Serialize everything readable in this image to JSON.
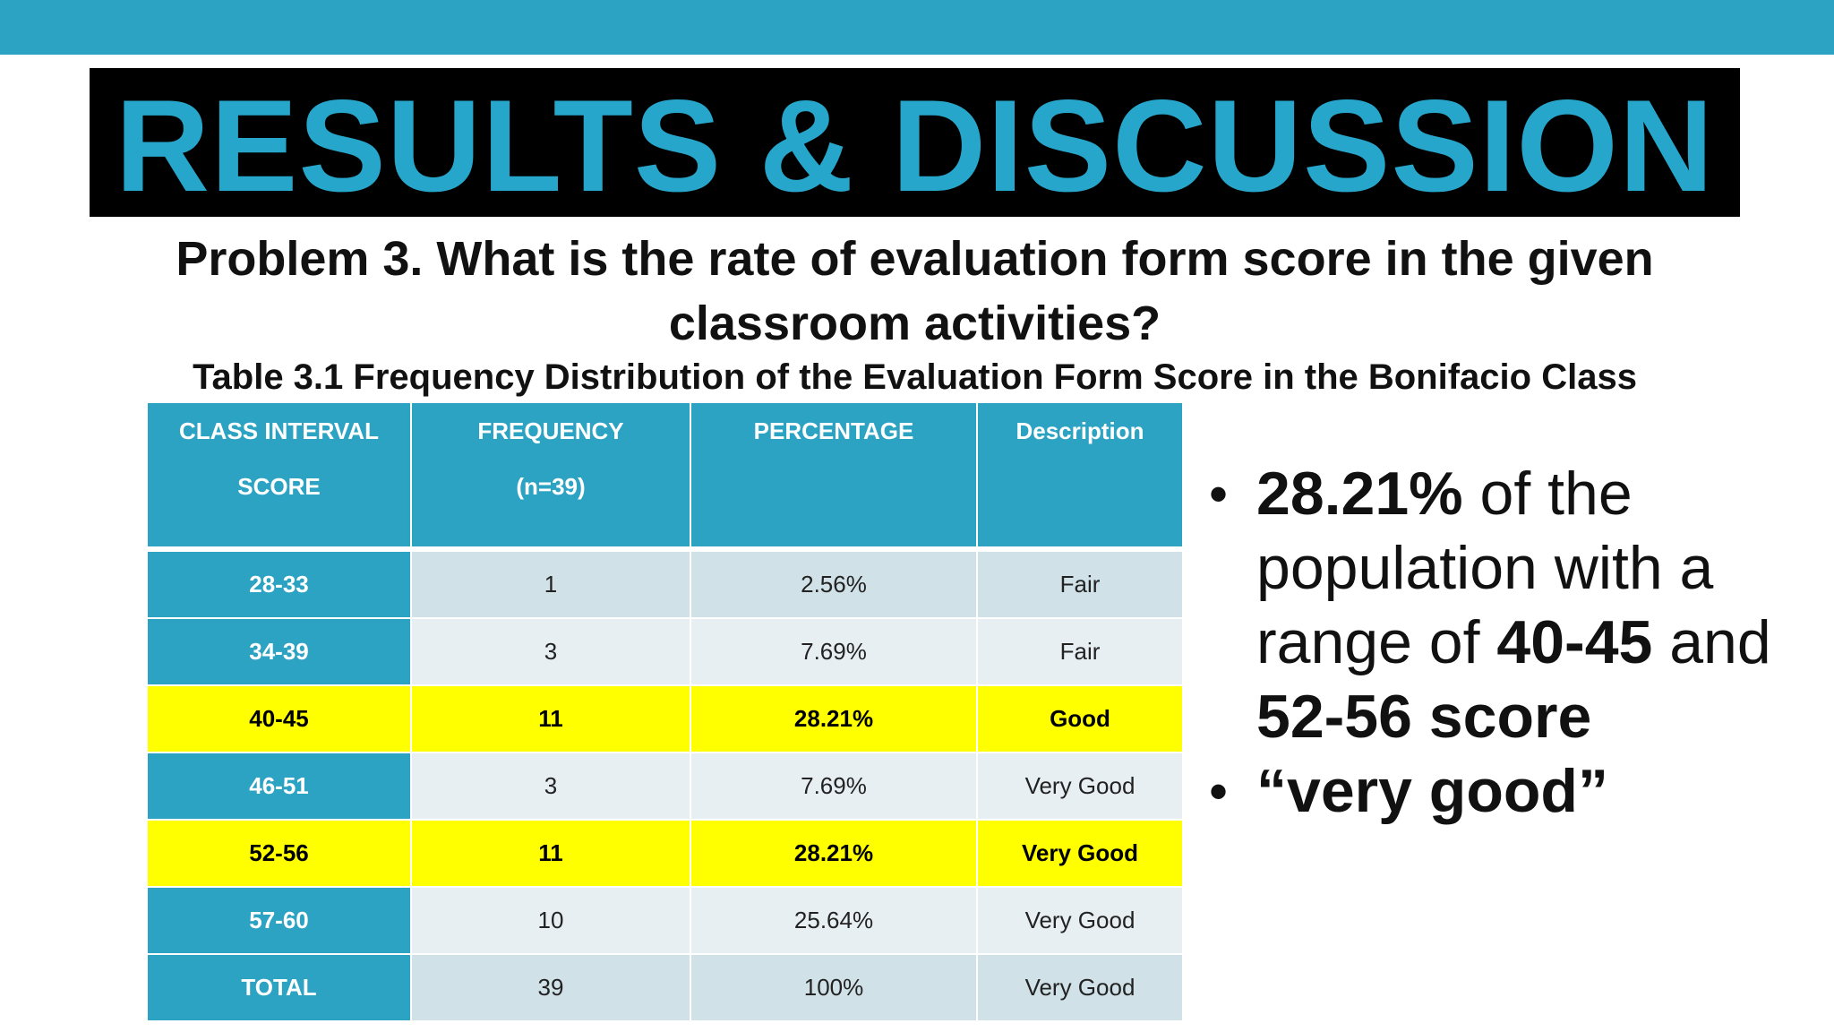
{
  "slide": {
    "title": "RESULTS & DISCUSSION",
    "problem": "Problem 3. What is the rate of evaluation form score in the given classroom activities?",
    "table_caption": "Table 3.1 Frequency Distribution of the Evaluation Form Score in the Bonifacio Class",
    "colors": {
      "accent": "#2da3c3",
      "title_text": "#27a6cb",
      "title_band": "#000000",
      "highlight": "#ffff00"
    }
  },
  "table": {
    "headers": [
      [
        "CLASS INTERVAL",
        "SCORE"
      ],
      [
        "FREQUENCY",
        "(n=39)"
      ],
      [
        "PERCENTAGE",
        ""
      ],
      [
        "Description",
        ""
      ]
    ],
    "rows": [
      {
        "interval": "28-33",
        "frequency": "1",
        "percentage": "2.56%",
        "description": "Fair",
        "highlight": false
      },
      {
        "interval": "34-39",
        "frequency": "3",
        "percentage": "7.69%",
        "description": "Fair",
        "highlight": false
      },
      {
        "interval": "40-45",
        "frequency": "11",
        "percentage": "28.21%",
        "description": "Good",
        "highlight": true
      },
      {
        "interval": "46-51",
        "frequency": "3",
        "percentage": "7.69%",
        "description": "Very Good",
        "highlight": false
      },
      {
        "interval": "52-56",
        "frequency": "11",
        "percentage": "28.21%",
        "description": "Very Good",
        "highlight": true
      },
      {
        "interval": "57-60",
        "frequency": "10",
        "percentage": "25.64%",
        "description": "Very Good",
        "highlight": false
      },
      {
        "interval": "TOTAL",
        "frequency": "39",
        "percentage": "100%",
        "description": "Very Good",
        "highlight": false
      }
    ]
  },
  "bullets": {
    "b1": {
      "part1": "28.21%",
      "part2": " of the population with a range of ",
      "part3": "40-45",
      "part4": " and ",
      "part5": "52-56 score"
    },
    "b2": {
      "text": "“very good”"
    }
  }
}
